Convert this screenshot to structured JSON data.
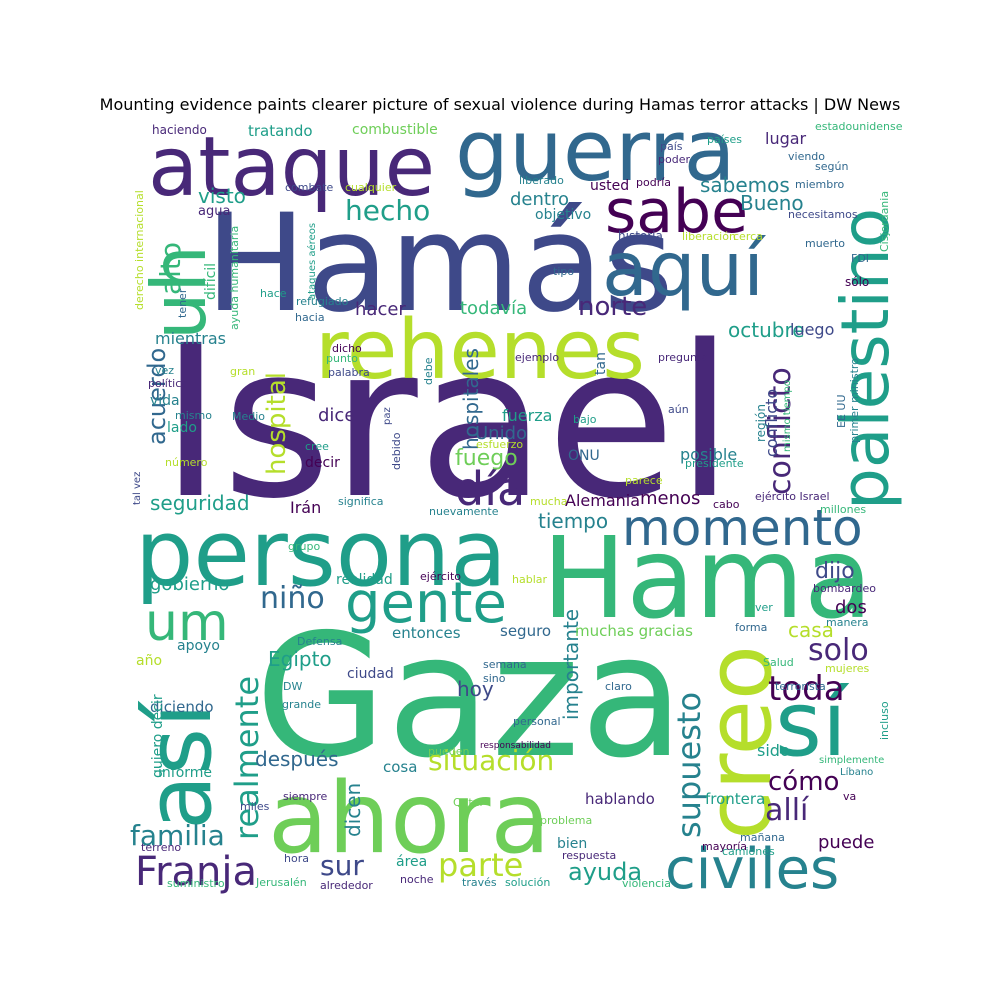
{
  "title": "Mounting evidence paints clearer picture of sexual violence during Hamas terror attacks | DW News",
  "palette": [
    "#440154",
    "#482878",
    "#3e4989",
    "#31688e",
    "#26828e",
    "#1f9e89",
    "#35b779",
    "#6ece58",
    "#b5de2b",
    "#fde725"
  ],
  "words": [
    "Israel",
    "Gaza",
    "Hamás",
    "guerra",
    "ataque",
    "rehenes",
    "Hama",
    "persona",
    "ahora",
    "palestino",
    "aquí",
    "sabe",
    "creo",
    "momento",
    "sí",
    "así",
    "gente",
    "uh",
    "um",
    "civiles",
    "Franja",
    "día",
    "conflicto",
    "hospital",
    "realmente",
    "supuesto",
    "toda",
    "parte",
    "allí",
    "situación",
    "hecho",
    "familia",
    "solo",
    "alto",
    "acuerdo",
    "norte",
    "hospitales",
    "niño",
    "cómo",
    "sur",
    "Bueno",
    "sabemos",
    "octubre",
    "dijo",
    "ayuda",
    "casa",
    "dicen",
    "fuego",
    "seguridad",
    "visto",
    "hacer",
    "todavía",
    "dentro",
    "mientras",
    "gobierno",
    "importante",
    "después",
    "tiempo",
    "Egipto",
    "hoy",
    "dos",
    "menos",
    "Unido",
    "Irán",
    "dice",
    "fuerza",
    "posible",
    "conflicto",
    "frontera",
    "hablando",
    "puede",
    "sido",
    "luego",
    "lugar",
    "usted",
    "objetivo",
    "combustible",
    "tratando",
    "haciendo",
    "derecho internacional",
    "ataques aéreos",
    "difícil",
    "agua",
    "combate",
    "cualquier",
    "liberado",
    "país",
    "poder",
    "países",
    "estadounidense",
    "viendo",
    "según",
    "miembro",
    "podría",
    "necesitamos",
    "Cisjordania",
    "historia",
    "liberación",
    "cerca",
    "muerto",
    "FDI",
    "sólo",
    "tipo",
    "refugiado",
    "hace",
    "hacia",
    "ayuda humanitaria",
    "tener",
    "política",
    "vez",
    "mismo",
    "Medio",
    "vida",
    "lado",
    "gran",
    "punto",
    "dicho",
    "palabra",
    "debe",
    "ejemplo",
    "tan",
    "pregunta",
    "ejército Israel",
    "millones",
    "bombardeo",
    "manera",
    "primer ministro",
    "EE UU",
    "mismo tiempo",
    "región",
    "presidente",
    "parece",
    "aún",
    "bajo",
    "esfuerzo",
    "paz",
    "cree",
    "debido",
    "significa",
    "mucha",
    "nuevamente",
    "cabo",
    "Alemania",
    "ONU",
    "número",
    "tal vez",
    "decir",
    "grupo",
    "realidad",
    "ejército",
    "hablar",
    "ver",
    "forma",
    "seguro",
    "muchas gracias",
    "entonces",
    "apoyo",
    "Defensa",
    "año",
    "DW",
    "grande",
    "ciudad",
    "semana",
    "sino",
    "claro",
    "Salud",
    "mujeres",
    "terrorista",
    "incluso",
    "diciendo",
    "quiero decir",
    "informe",
    "personal",
    "pueden",
    "responsabilidad",
    "simplemente",
    "Líbano",
    "siempre",
    "miles",
    "cosa",
    "Qatar",
    "problema",
    "bien",
    "respuesta",
    "mañana",
    "mayoría",
    "camiones",
    "va",
    "terreno",
    "hora",
    "área",
    "noche",
    "suministro",
    "Jerusalén",
    "alrededor",
    "través",
    "solución",
    "violencia"
  ]
}
